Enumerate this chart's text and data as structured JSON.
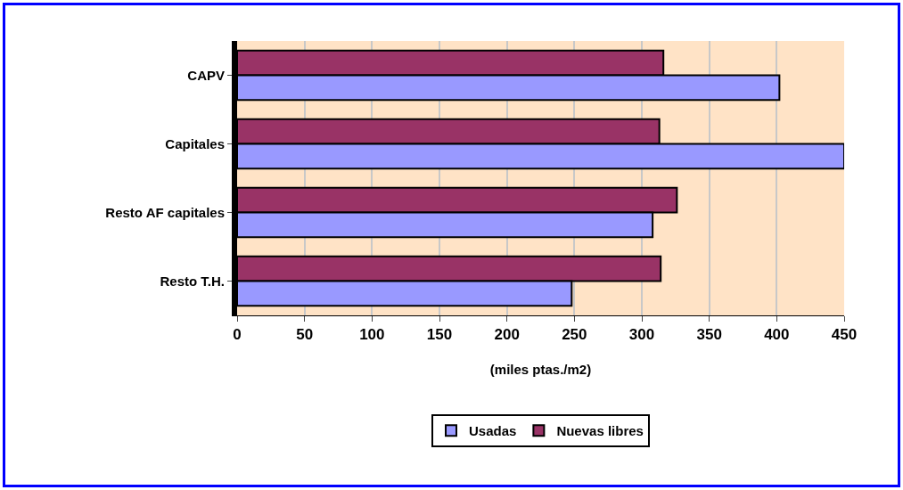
{
  "chart_data": {
    "type": "bar",
    "orientation": "horizontal",
    "categories": [
      "CAPV",
      "Capitales",
      "Resto AF capitales",
      "Resto T.H."
    ],
    "series": [
      {
        "name": "Usadas",
        "color": "#9999ff",
        "values": [
          402,
          450,
          308,
          248
        ]
      },
      {
        "name": "Nuevas libres",
        "color": "#993366",
        "values": [
          316,
          313,
          326,
          314
        ]
      }
    ],
    "xlabel": "(miles ptas./m2)",
    "xlim": [
      0,
      450
    ],
    "xticks": [
      0,
      50,
      100,
      150,
      200,
      250,
      300,
      350,
      400,
      450
    ],
    "grid": "x",
    "legend": "bottom"
  }
}
